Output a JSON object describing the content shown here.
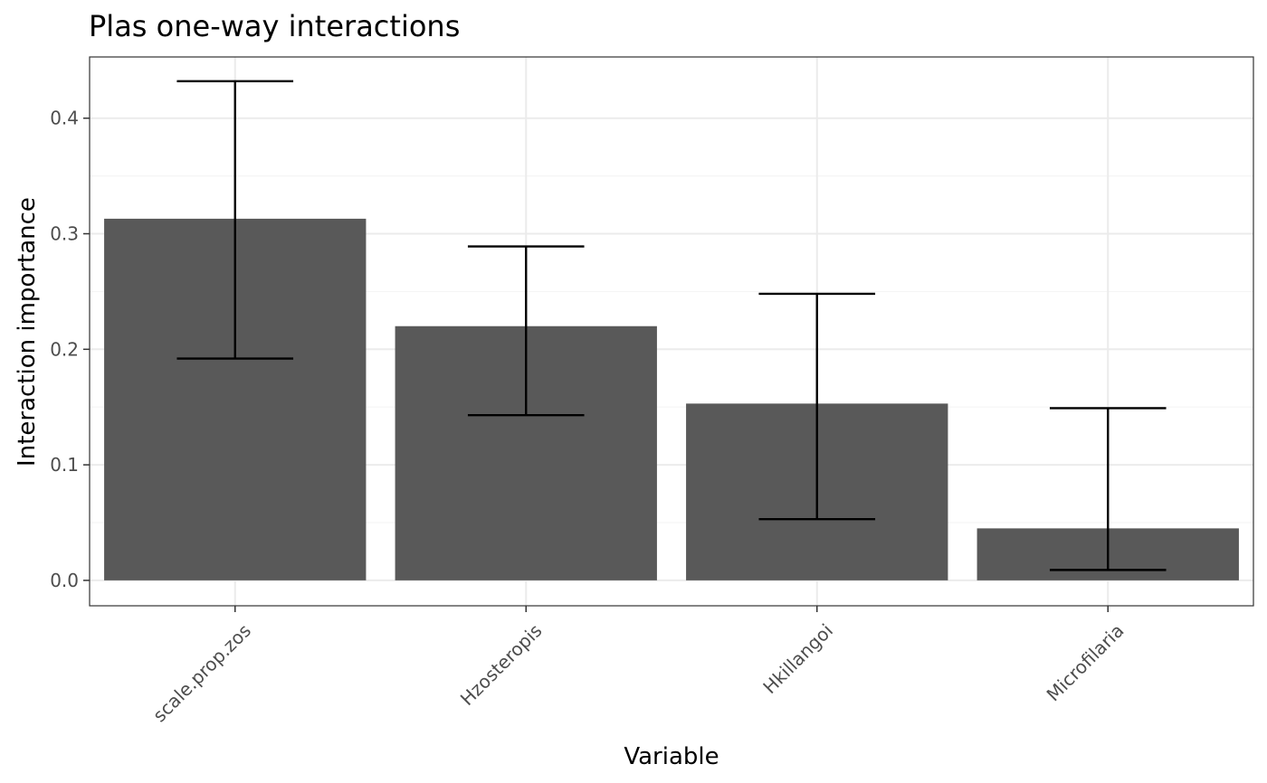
{
  "chart_data": {
    "type": "bar",
    "title": "Plas one-way interactions",
    "xlabel": "Variable",
    "ylabel": "Interaction importance",
    "categories": [
      "scale.prop.zos",
      "Hzosteropis",
      "Hkillangoi",
      "Microfilaria"
    ],
    "values": [
      0.313,
      0.22,
      0.153,
      0.045
    ],
    "error_low": [
      0.192,
      0.143,
      0.053,
      0.009
    ],
    "error_high": [
      0.432,
      0.289,
      0.248,
      0.149
    ],
    "ylim": [
      -0.022,
      0.453
    ],
    "yticks": [
      0.0,
      0.1,
      0.2,
      0.3,
      0.4
    ],
    "ytick_labels": [
      "0.0",
      "0.1",
      "0.2",
      "0.3",
      "0.4"
    ],
    "grid": true,
    "legend": "none",
    "colors": {
      "bar": "#595959",
      "error_bar": "#000000",
      "grid_major": "#ebebeb",
      "grid_minor": "#f5f5f5",
      "panel_border": "#333333",
      "tick_text": "#4d4d4d"
    }
  }
}
